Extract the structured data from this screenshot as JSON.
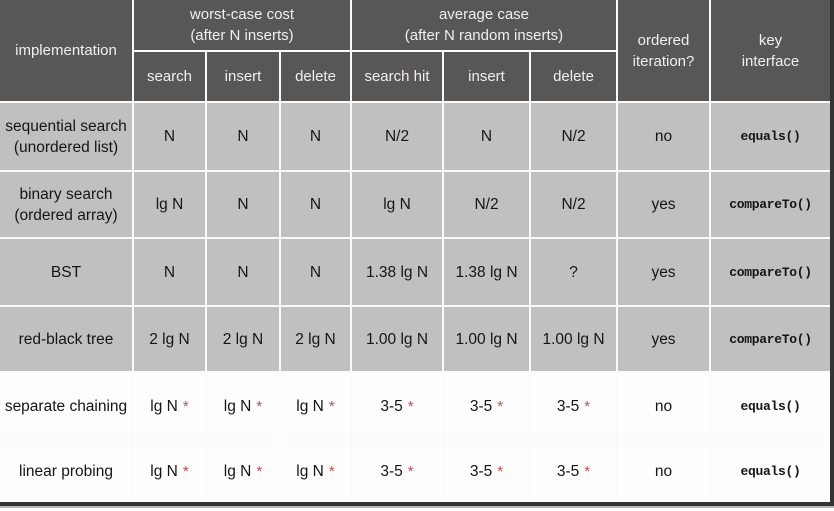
{
  "colors": {
    "header_bg": "#595755",
    "header_text": "#f1efed",
    "row_shaded_bg": "#c0c0c0",
    "row_plain_bg": "#fdfdfd",
    "grid_line": "#fafafa",
    "cell_text": "#151515",
    "star": "#c0504d",
    "frame_border": "#333333"
  },
  "chart_data": {
    "type": "table",
    "footnote_marker": "*",
    "header": {
      "implementation": "implementation",
      "groups": [
        {
          "line1": "worst-case cost",
          "line2": "(after N inserts)",
          "subcols": [
            "search",
            "insert",
            "delete"
          ]
        },
        {
          "line1": "average case",
          "line2": "(after N random inserts)",
          "subcols": [
            "search hit",
            "insert",
            "delete"
          ]
        }
      ],
      "ordered": [
        "ordered",
        "iteration?"
      ],
      "key_interface": [
        "key",
        "interface"
      ]
    },
    "rows": [
      {
        "implementation": [
          "sequential search",
          "(unordered list)"
        ],
        "worst_case": [
          "N",
          "N",
          "N"
        ],
        "average_case": [
          "N/2",
          "N",
          "N/2"
        ],
        "starred": false,
        "ordered_iteration": "no",
        "key_interface": "equals()",
        "shaded": true
      },
      {
        "implementation": [
          "binary search",
          "(ordered array)"
        ],
        "worst_case": [
          "lg N",
          "N",
          "N"
        ],
        "average_case": [
          "lg N",
          "N/2",
          "N/2"
        ],
        "starred": false,
        "ordered_iteration": "yes",
        "key_interface": "compareTo()",
        "shaded": true
      },
      {
        "implementation": [
          "BST"
        ],
        "worst_case": [
          "N",
          "N",
          "N"
        ],
        "average_case": [
          "1.38 lg N",
          "1.38 lg N",
          "?"
        ],
        "starred": false,
        "ordered_iteration": "yes",
        "key_interface": "compareTo()",
        "shaded": true
      },
      {
        "implementation": [
          "red-black tree"
        ],
        "worst_case": [
          "2 lg N",
          "2 lg N",
          "2 lg N"
        ],
        "average_case": [
          "1.00 lg N",
          "1.00 lg N",
          "1.00 lg N"
        ],
        "starred": false,
        "ordered_iteration": "yes",
        "key_interface": "compareTo()",
        "shaded": true
      },
      {
        "implementation": [
          "separate chaining"
        ],
        "worst_case": [
          "lg N",
          "lg N",
          "lg N"
        ],
        "average_case": [
          "3-5",
          "3-5",
          "3-5"
        ],
        "starred": true,
        "ordered_iteration": "no",
        "key_interface": "equals()",
        "shaded": false
      },
      {
        "implementation": [
          "linear probing"
        ],
        "worst_case": [
          "lg N",
          "lg N",
          "lg N"
        ],
        "average_case": [
          "3-5",
          "3-5",
          "3-5"
        ],
        "starred": true,
        "ordered_iteration": "no",
        "key_interface": "equals()",
        "shaded": false
      }
    ]
  }
}
